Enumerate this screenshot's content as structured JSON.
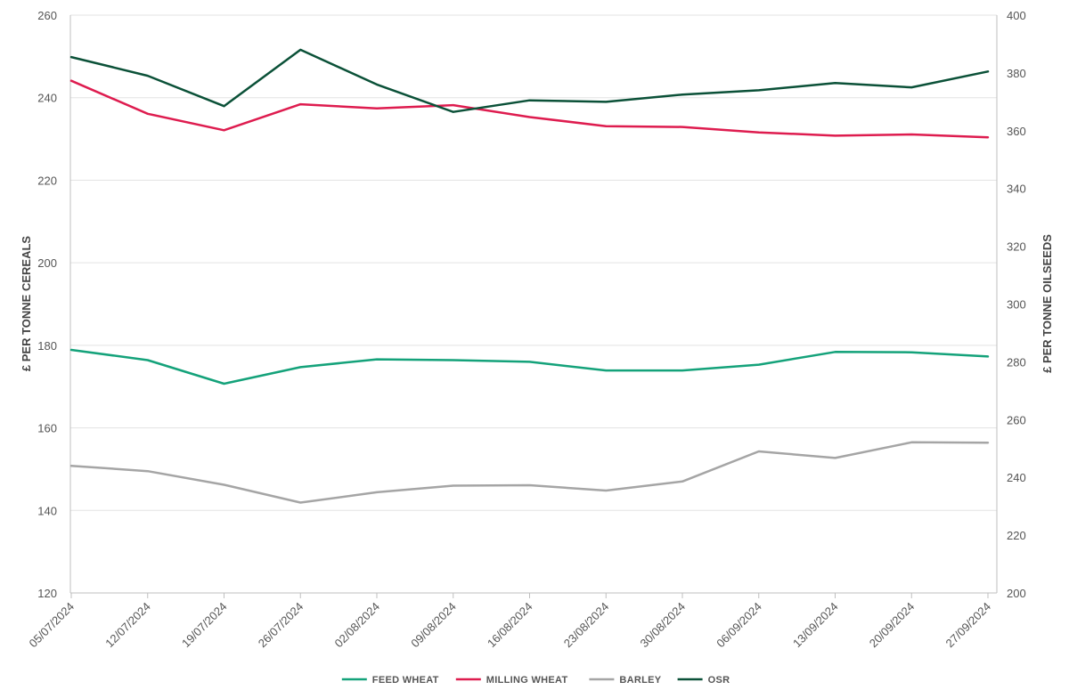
{
  "chart_data": {
    "type": "line",
    "categories": [
      "05/07/2024",
      "12/07/2024",
      "19/07/2024",
      "26/07/2024",
      "02/08/2024",
      "09/08/2024",
      "16/08/2024",
      "23/08/2024",
      "30/08/2024",
      "06/09/2024",
      "13/09/2024",
      "20/09/2024",
      "27/09/2024"
    ],
    "y_left": {
      "label": "£ PER TONNE CEREALS",
      "range": [
        120,
        260
      ],
      "ticks": [
        120,
        140,
        160,
        180,
        200,
        220,
        240,
        260
      ]
    },
    "y_right": {
      "label": "£ PER TONNE OILSEEDS",
      "range": [
        200,
        400
      ],
      "ticks": [
        200,
        220,
        240,
        260,
        280,
        300,
        320,
        340,
        360,
        380,
        400
      ]
    },
    "grid": true,
    "legend_position": "bottom",
    "series": [
      {
        "name": "FEED WHEAT",
        "axis": "left",
        "color": "#14a27a",
        "values": [
          178.9,
          176.4,
          170.7,
          174.7,
          176.6,
          176.4,
          176.0,
          173.9,
          173.9,
          175.3,
          178.4,
          178.3,
          177.3
        ]
      },
      {
        "name": "MILLING WHEAT",
        "axis": "left",
        "color": "#de1c4f",
        "values": [
          244.1,
          236.1,
          232.1,
          238.4,
          237.4,
          238.2,
          235.3,
          233.1,
          232.9,
          231.6,
          230.8,
          231.1,
          230.4
        ]
      },
      {
        "name": "BARLEY",
        "axis": "left",
        "color": "#a5a5a5",
        "values": [
          150.8,
          149.5,
          146.2,
          141.9,
          144.4,
          146.0,
          146.1,
          144.8,
          147.0,
          154.3,
          152.7,
          156.5,
          156.4
        ]
      },
      {
        "name": "OSR",
        "axis": "right",
        "color": "#0b5138",
        "values": [
          385.5,
          379.0,
          368.5,
          388.0,
          376.0,
          366.5,
          370.5,
          370.0,
          372.5,
          374.0,
          376.5,
          375.0,
          380.5
        ]
      }
    ]
  }
}
